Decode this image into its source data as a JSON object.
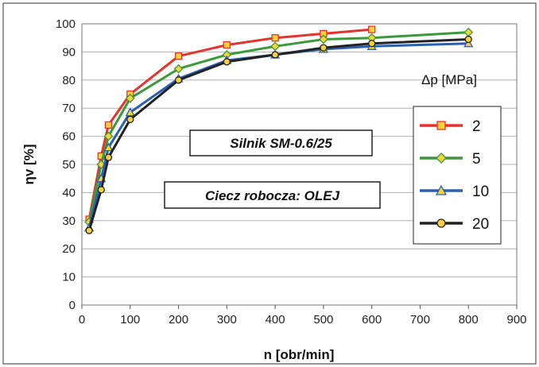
{
  "chart_data": {
    "type": "line",
    "title": "",
    "xlabel": "n   [obr/min]",
    "ylabel": "ηv   [%]",
    "xlim": [
      0,
      900
    ],
    "ylim": [
      0,
      100
    ],
    "x_ticks": [
      "0",
      "100",
      "200",
      "300",
      "400",
      "500",
      "600",
      "700",
      "800",
      "900"
    ],
    "y_ticks": [
      "0",
      "10",
      "20",
      "30",
      "40",
      "50",
      "60",
      "70",
      "80",
      "90",
      "100"
    ],
    "grid": true,
    "legend_title": "Δp [MPa]",
    "legend_position": "right",
    "annotations": [
      "Silnik SM-0.6/25",
      "Ciecz robocza: OLEJ"
    ],
    "series": [
      {
        "name": "2",
        "color": "#e8312a",
        "marker": "square",
        "marker_fill": "#f7d23b",
        "x": [
          15,
          40,
          55,
          100,
          200,
          300,
          400,
          500,
          600
        ],
        "y": [
          30.5,
          53,
          64,
          75,
          88.5,
          92.5,
          95,
          96.5,
          98
        ]
      },
      {
        "name": "5",
        "color": "#3a9a3a",
        "marker": "diamond",
        "marker_fill": "#f7d23b",
        "x": [
          15,
          40,
          55,
          100,
          200,
          300,
          400,
          500,
          600,
          800
        ],
        "y": [
          29.5,
          50,
          60,
          73.5,
          84,
          89,
          92,
          94.5,
          95,
          97
        ]
      },
      {
        "name": "10",
        "color": "#2a60b4",
        "marker": "triangle",
        "marker_fill": "#f7d23b",
        "x": [
          15,
          40,
          55,
          100,
          200,
          300,
          400,
          500,
          600,
          800
        ],
        "y": [
          27.5,
          45,
          56,
          68.5,
          80.5,
          87,
          89,
          91,
          92,
          93
        ]
      },
      {
        "name": "20",
        "color": "#222222",
        "marker": "circle",
        "marker_fill": "#f7d23b",
        "x": [
          15,
          40,
          55,
          100,
          200,
          300,
          400,
          500,
          600,
          800
        ],
        "y": [
          26.5,
          41,
          52.5,
          66,
          80,
          86.5,
          89,
          91.5,
          93,
          94.5
        ]
      }
    ]
  }
}
